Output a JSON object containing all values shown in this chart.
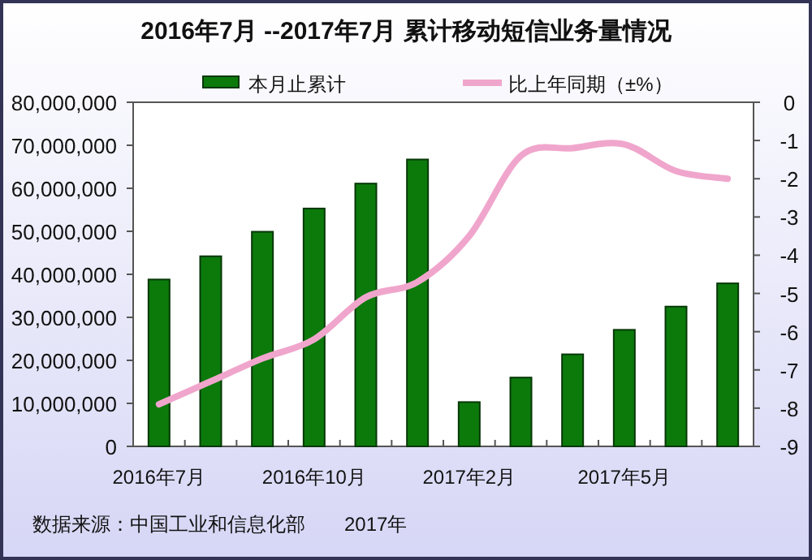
{
  "chart_data": {
    "type": "bar",
    "title": "2016年7月 --2017年7月 累计移动短信业务量情况",
    "categories": [
      "2016年7月",
      null,
      null,
      "2016年10月",
      null,
      null,
      "2017年2月",
      null,
      null,
      "2017年5月",
      null,
      null
    ],
    "series": [
      {
        "name": "本月止累计",
        "color": "#0b7a0b",
        "values": [
          38800000,
          44200000,
          49900000,
          55300000,
          61100000,
          66700000,
          10300000,
          16000000,
          21400000,
          27100000,
          32500000,
          37900000
        ]
      },
      {
        "name": "比上年同期（±%）",
        "type": "line",
        "axis": "y2",
        "color": "#f0a6cc",
        "values": [
          -7.9,
          -7.3,
          -6.7,
          -6.2,
          -5.1,
          -4.7,
          -3.5,
          -1.4,
          -1.2,
          -1.1,
          -1.8,
          -2.0
        ]
      }
    ],
    "ylim": [
      0,
      80000000
    ],
    "yticks": [
      {
        "value": 0,
        "label": "0"
      },
      {
        "value": 10000000,
        "label": "10,000,000"
      },
      {
        "value": 20000000,
        "label": "20,000,000"
      },
      {
        "value": 30000000,
        "label": "30,000,000"
      },
      {
        "value": 40000000,
        "label": "40,000,000"
      },
      {
        "value": 50000000,
        "label": "50,000,000"
      },
      {
        "value": 60000000,
        "label": "60,000,000"
      },
      {
        "value": 70000000,
        "label": "70,000,000"
      },
      {
        "value": 80000000,
        "label": "80,000,000"
      }
    ],
    "y2lim": [
      -9,
      0
    ],
    "y2ticks": [
      -9,
      -8,
      -7,
      -6,
      -5,
      -4,
      -3,
      -2,
      -1,
      0
    ],
    "legend": "top",
    "annotations": [
      "数据来源：中国工业和信息化部",
      "2017年"
    ]
  }
}
